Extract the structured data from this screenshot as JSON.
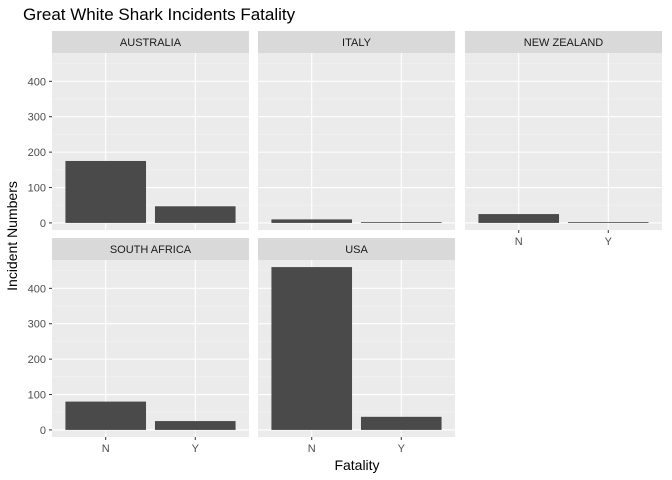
{
  "chart_data": {
    "type": "bar",
    "title": "Great White Shark Incidents Fatality",
    "xlabel": "Fatality",
    "ylabel": "Incident Numbers",
    "categories": [
      "N",
      "Y"
    ],
    "ylim": [
      -20,
      480
    ],
    "y_ticks": [
      0,
      100,
      200,
      300,
      400
    ],
    "y_tick_labels": [
      "0",
      "100",
      "200",
      "300",
      "400"
    ],
    "grid": true,
    "facets": [
      {
        "name": "AUSTRALIA",
        "values": [
          175,
          47
        ]
      },
      {
        "name": "ITALY",
        "values": [
          10,
          2
        ]
      },
      {
        "name": "NEW ZEALAND",
        "values": [
          25,
          2
        ]
      },
      {
        "name": "SOUTH AFRICA",
        "values": [
          80,
          25
        ]
      },
      {
        "name": "USA",
        "values": [
          460,
          37
        ]
      }
    ],
    "colors": {
      "bar": "#4a4a4a",
      "panel": "#ebebeb",
      "strip": "#d9d9d9",
      "grid_major": "#ffffff",
      "grid_minor": "#f3f3f3"
    }
  }
}
